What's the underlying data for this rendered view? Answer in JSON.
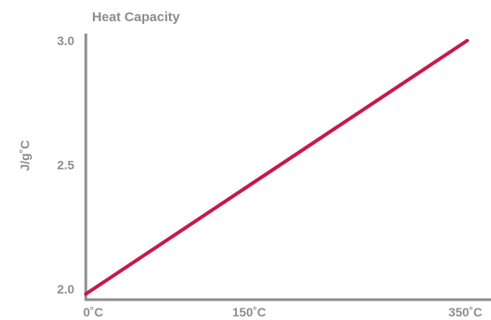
{
  "chart_data": {
    "type": "line",
    "title": "Heat Capacity",
    "ylabel": "J/g˚C",
    "xlabel": "",
    "x": [
      0,
      350
    ],
    "series": [
      {
        "values": [
          1.98,
          3.0
        ],
        "color": "#c8184a"
      }
    ],
    "xlim": [
      0,
      350
    ],
    "ylim": [
      2.0,
      3.0
    ],
    "x_ticks": [
      {
        "value": 0,
        "label": "0˚C"
      },
      {
        "value": 150,
        "label": "150˚C"
      },
      {
        "value": 350,
        "label": "350˚C"
      }
    ],
    "y_ticks": [
      {
        "value": 2.0,
        "label": "2.0"
      },
      {
        "value": 2.5,
        "label": "2.5"
      },
      {
        "value": 3.0,
        "label": "3.0"
      }
    ],
    "grid": false,
    "legend": "none",
    "axis_color": "#8c8c8c",
    "text_color": "#8c8c8c"
  }
}
